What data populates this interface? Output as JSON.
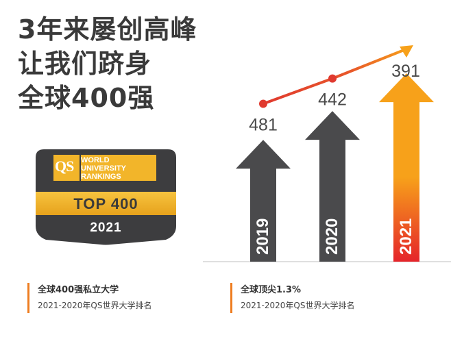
{
  "headline": [
    "3年来屡创高峰",
    "让我们跻身",
    "全球400强"
  ],
  "badge": {
    "logo": "QS",
    "lines": [
      "WORLD",
      "UNIVERSITY",
      "RANKINGS"
    ],
    "top_label": "TOP 400",
    "year": "2021"
  },
  "chart_data": {
    "type": "line",
    "categories": [
      "2019",
      "2020",
      "2021"
    ],
    "values": [
      481,
      442,
      391
    ],
    "value_labels": [
      "481",
      "442",
      "391"
    ],
    "colors": {
      "line": "#e03a2f",
      "arrow_gray": "#4a4a4c",
      "arrow_orange": "#f7a11a",
      "arrow_red": "#e5252a",
      "baseline": "#bfbfbf"
    }
  },
  "notes": [
    {
      "title": "全球400强私立大学",
      "sub": "2021-2020年QS世界大学排名"
    },
    {
      "title": "全球顶尖1.3%",
      "sub": "2021-2020年QS世界大学排名"
    }
  ]
}
